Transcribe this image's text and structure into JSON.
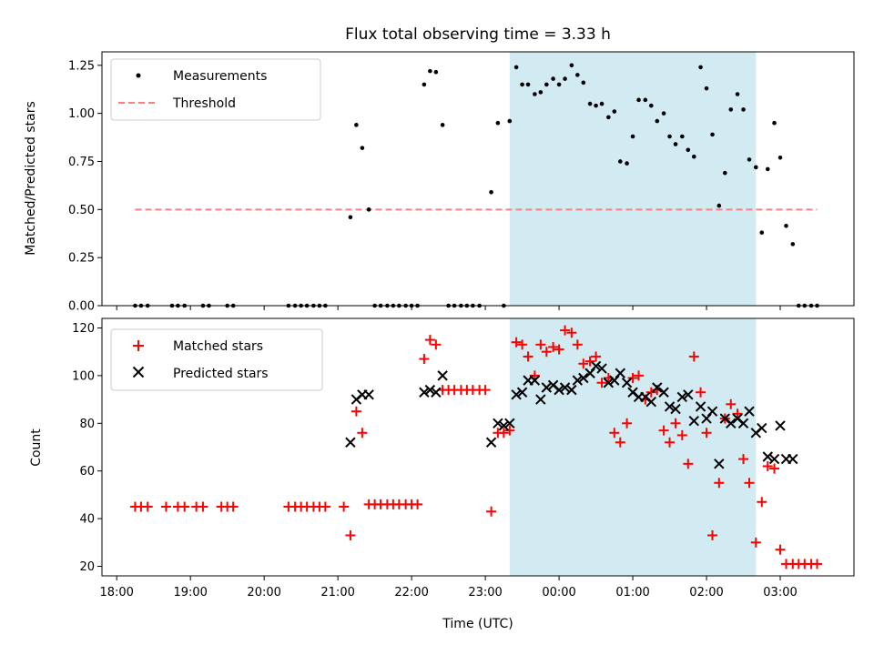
{
  "chart_data": {
    "type": "scatter",
    "title": "Flux total observing time = 3.33 h",
    "shaded_span_hours": [
      23.33,
      26.67
    ],
    "shaded_color": "#add8e6",
    "panels": [
      {
        "id": "ratio",
        "ylabel": "Matched/Predicted stars",
        "ylim": [
          0,
          1.32
        ],
        "yticks": [
          0,
          0.25,
          0.5,
          0.75,
          1.0,
          1.25
        ],
        "ytick_labels": [
          "0.00",
          "0.25",
          "0.50",
          "0.75",
          "1.00",
          "1.25"
        ],
        "legend_position": "upper-left",
        "threshold": {
          "name": "Threshold",
          "value": 0.5,
          "x_range": [
            18.25,
            27.5
          ],
          "color": "#ff7f7f"
        },
        "series": [
          {
            "name": "Measurements",
            "marker": "dot",
            "color": "#000000",
            "x": [
              18.25,
              18.33,
              18.42,
              18.75,
              18.83,
              18.92,
              19.17,
              19.25,
              19.5,
              19.58,
              20.33,
              20.42,
              20.5,
              20.58,
              20.67,
              20.75,
              20.83,
              21.17,
              21.25,
              21.33,
              21.42,
              21.5,
              21.58,
              21.67,
              21.75,
              21.83,
              21.92,
              22.0,
              22.08,
              22.17,
              22.25,
              22.33,
              22.42,
              22.5,
              22.58,
              22.67,
              22.75,
              22.83,
              22.92,
              23.08,
              23.17,
              23.25,
              23.33,
              23.42,
              23.5,
              23.58,
              23.67,
              23.75,
              23.83,
              23.92,
              24.0,
              24.08,
              24.17,
              24.25,
              24.33,
              24.42,
              24.5,
              24.58,
              24.67,
              24.75,
              24.83,
              24.92,
              25.0,
              25.08,
              25.17,
              25.25,
              25.33,
              25.42,
              25.5,
              25.58,
              25.67,
              25.75,
              25.83,
              25.92,
              26.0,
              26.08,
              26.17,
              26.25,
              26.33,
              26.42,
              26.5,
              26.58,
              26.67,
              26.75,
              26.83,
              26.92,
              27.0,
              27.08,
              27.17,
              27.25,
              27.33,
              27.42,
              27.5
            ],
            "y": [
              0,
              0,
              0,
              0,
              0,
              0,
              0,
              0,
              0,
              0,
              0,
              0,
              0,
              0,
              0,
              0,
              0,
              0.46,
              0.94,
              0.82,
              0.5,
              0,
              0,
              0,
              0,
              0,
              0,
              0,
              0,
              1.15,
              1.22,
              1.215,
              0.94,
              0,
              0,
              0,
              0,
              0,
              0,
              0.59,
              0.95,
              0,
              0.96,
              1.24,
              1.15,
              1.15,
              1.1,
              1.11,
              1.15,
              1.18,
              1.15,
              1.18,
              1.25,
              1.2,
              1.16,
              1.05,
              1.04,
              1.05,
              0.98,
              1.01,
              0.75,
              0.74,
              0.88,
              1.07,
              1.07,
              1.04,
              0.96,
              1.0,
              0.88,
              0.84,
              0.88,
              0.81,
              0.775,
              1.24,
              1.13,
              0.89,
              0.52,
              0.69,
              1.02,
              1.1,
              1.02,
              0.76,
              0.72,
              0.38,
              0.71,
              0.95,
              0.77,
              0.415,
              0.32,
              0,
              0,
              0,
              0
            ]
          }
        ]
      },
      {
        "id": "counts",
        "ylabel": "Count",
        "ylim": [
          16,
          124
        ],
        "yticks": [
          20,
          40,
          60,
          80,
          100,
          120
        ],
        "ytick_labels": [
          "20",
          "40",
          "60",
          "80",
          "100",
          "120"
        ],
        "xlabel": "Time (UTC)",
        "xlim": [
          17.8,
          28.0
        ],
        "xticks": [
          18,
          19,
          20,
          21,
          22,
          23,
          24,
          25,
          26,
          27
        ],
        "xtick_labels": [
          "18:00",
          "19:00",
          "20:00",
          "21:00",
          "22:00",
          "23:00",
          "00:00",
          "01:00",
          "02:00",
          "03:00"
        ],
        "legend_position": "upper-left",
        "series": [
          {
            "name": "Matched stars",
            "marker": "plus",
            "color": "#ff0000",
            "x": [
              18.25,
              18.33,
              18.42,
              18.67,
              18.83,
              18.92,
              19.08,
              19.17,
              19.42,
              19.5,
              19.58,
              20.33,
              20.42,
              20.5,
              20.58,
              20.67,
              20.75,
              20.83,
              21.08,
              21.17,
              21.25,
              21.33,
              21.42,
              21.5,
              21.58,
              21.67,
              21.75,
              21.83,
              21.92,
              22.0,
              22.08,
              22.17,
              22.25,
              22.33,
              22.42,
              22.5,
              22.58,
              22.67,
              22.75,
              22.83,
              22.92,
              23.0,
              23.08,
              23.17,
              23.25,
              23.33,
              23.42,
              23.5,
              23.58,
              23.67,
              23.75,
              23.83,
              23.92,
              24.0,
              24.08,
              24.17,
              24.25,
              24.33,
              24.42,
              24.5,
              24.58,
              24.67,
              24.75,
              24.83,
              24.92,
              25.0,
              25.08,
              25.17,
              25.25,
              25.33,
              25.42,
              25.5,
              25.58,
              25.67,
              25.75,
              25.83,
              25.92,
              26.0,
              26.08,
              26.17,
              26.25,
              26.33,
              26.42,
              26.5,
              26.58,
              26.67,
              26.75,
              26.83,
              26.92,
              27.0,
              27.08,
              27.17,
              27.25,
              27.33,
              27.42,
              27.5
            ],
            "y": [
              45,
              45,
              45,
              45,
              45,
              45,
              45,
              45,
              45,
              45,
              45,
              45,
              45,
              45,
              45,
              45,
              45,
              45,
              45,
              33,
              85,
              76,
              46,
              46,
              46,
              46,
              46,
              46,
              46,
              46,
              46,
              107,
              115,
              113,
              94,
              94,
              94,
              94,
              94,
              94,
              94,
              94,
              43,
              76,
              76,
              77,
              114,
              113,
              108,
              100,
              113,
              110,
              112,
              111,
              119,
              118,
              113,
              105,
              106,
              108,
              97,
              99,
              76,
              72,
              80,
              99,
              100,
              90,
              93,
              94,
              77,
              72,
              80,
              75,
              63,
              108,
              93,
              76,
              33,
              55,
              82,
              88,
              84,
              65,
              55,
              30,
              47,
              62,
              61,
              27,
              21,
              21,
              21,
              21,
              21,
              21
            ]
          },
          {
            "name": "Predicted stars",
            "marker": "x",
            "color": "#000000",
            "x": [
              21.17,
              21.25,
              21.33,
              21.42,
              22.17,
              22.25,
              22.33,
              22.42,
              23.08,
              23.17,
              23.25,
              23.33,
              23.42,
              23.5,
              23.58,
              23.67,
              23.75,
              23.83,
              23.92,
              24.0,
              24.08,
              24.17,
              24.25,
              24.33,
              24.42,
              24.5,
              24.58,
              24.67,
              24.75,
              24.83,
              24.92,
              25.0,
              25.08,
              25.17,
              25.25,
              25.33,
              25.42,
              25.5,
              25.58,
              25.67,
              25.75,
              25.83,
              25.92,
              26.0,
              26.08,
              26.17,
              26.25,
              26.33,
              26.42,
              26.5,
              26.58,
              26.67,
              26.75,
              26.83,
              26.92,
              27.0,
              27.08,
              27.17
            ],
            "y": [
              72,
              90,
              92,
              92,
              93,
              94,
              93,
              100,
              72,
              80,
              79,
              80,
              92,
              93,
              98,
              98,
              90,
              95,
              96,
              94,
              95,
              94,
              98,
              99,
              101,
              104,
              103,
              97,
              98,
              101,
              97,
              93,
              91,
              91,
              89,
              95,
              93,
              87,
              86,
              91,
              92,
              81,
              87,
              82,
              85,
              63,
              82,
              80,
              82,
              80,
              85,
              76,
              78,
              66,
              65,
              79,
              65,
              65
            ]
          }
        ]
      }
    ]
  }
}
